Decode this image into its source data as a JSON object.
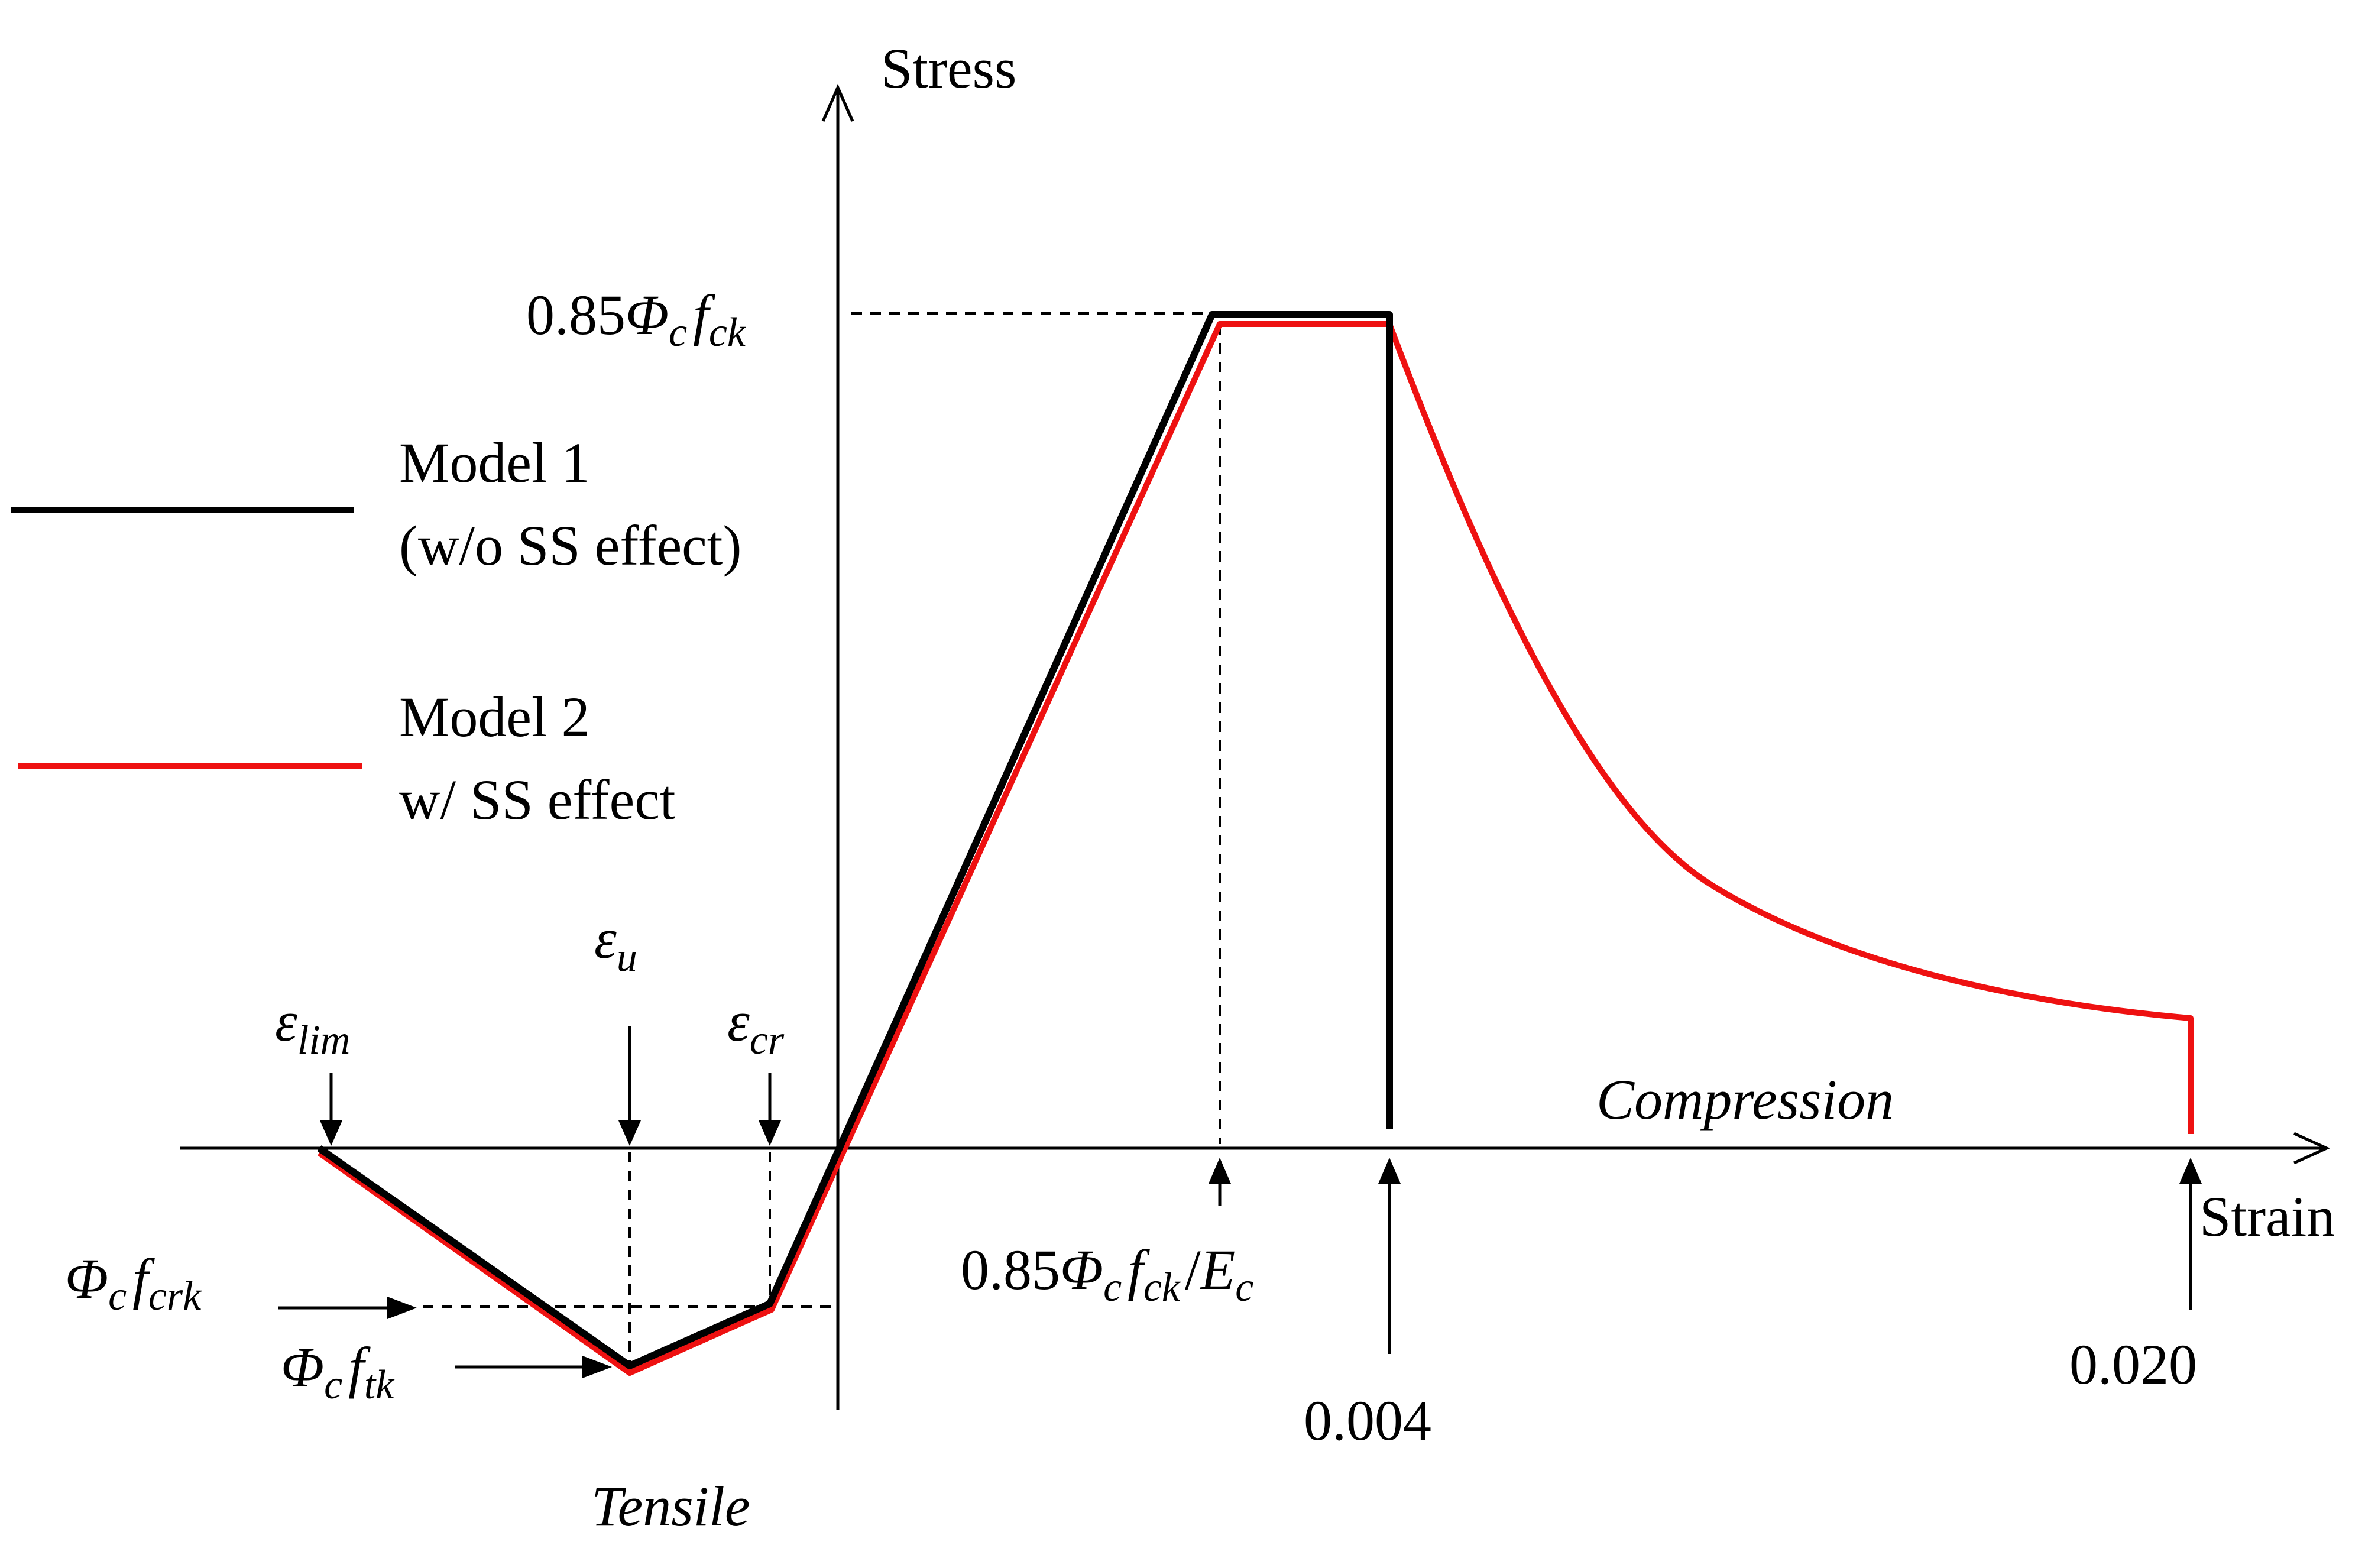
{
  "axes": {
    "y_label": "Stress",
    "x_label": "Strain"
  },
  "regions": {
    "compression": "Compression",
    "tensile": "Tensile"
  },
  "legend": {
    "model1": {
      "line1": "Model 1",
      "line2": "(w/o SS effect)",
      "color": "#000000"
    },
    "model2": {
      "line1": "Model 2",
      "line2": "w/ SS effect",
      "color": "#ee1111"
    }
  },
  "annotations": {
    "peak_stress": {
      "coef": "0.85",
      "phi": "Φ",
      "phi_sub": "c",
      "f": "f",
      "f_sub": "ck"
    },
    "peak_strain": {
      "coef": "0.85",
      "phi": "Φ",
      "phi_sub": "c",
      "f": "f",
      "f_sub": "ck",
      "slash": "/",
      "e": "E",
      "e_sub": "c"
    },
    "strain_004": "0.004",
    "strain_020": "0.020",
    "eps_lim": {
      "sym": "ε",
      "sub": "lim"
    },
    "eps_u": {
      "sym": "ε",
      "sub": "u"
    },
    "eps_cr": {
      "sym": "ε",
      "sub": "cr"
    },
    "crack_stress": {
      "phi": "Φ",
      "phi_sub": "c",
      "f": "f",
      "f_sub": "crk"
    },
    "tensile_stress": {
      "phi": "Φ",
      "phi_sub": "c",
      "f": "f",
      "f_sub": "tk"
    }
  }
}
